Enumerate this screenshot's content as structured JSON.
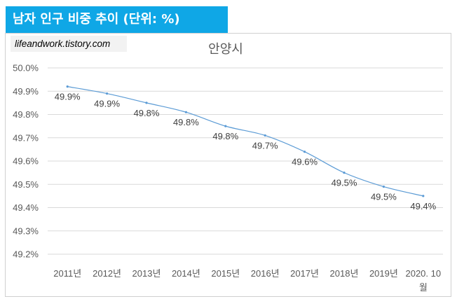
{
  "header": {
    "title": "남자 인구 비중 추이 (단위: %)"
  },
  "watermark": "lifeandwork.tistory.com",
  "colors": {
    "banner": "#0fa7e6",
    "series": "#5b9bd5",
    "grid": "#d9d9d9"
  },
  "chart_data": {
    "type": "line",
    "title": "안양시",
    "categories": [
      "2011년",
      "2012년",
      "2013년",
      "2014년",
      "2015년",
      "2016년",
      "2017년",
      "2018년",
      "2019년",
      "2020. 10 월"
    ],
    "series": [
      {
        "name": "남자 인구 비중",
        "values": [
          49.92,
          49.89,
          49.85,
          49.81,
          49.75,
          49.71,
          49.64,
          49.55,
          49.49,
          49.45
        ],
        "labels": [
          "49.9%",
          "49.9%",
          "49.8%",
          "49.8%",
          "49.8%",
          "49.7%",
          "49.6%",
          "49.5%",
          "49.5%",
          "49.4%"
        ]
      }
    ],
    "ylim": [
      49.2,
      50.0
    ],
    "yticks": [
      "49.2%",
      "49.3%",
      "49.4%",
      "49.5%",
      "49.6%",
      "49.7%",
      "49.8%",
      "49.9%",
      "50.0%"
    ],
    "xlabel": "",
    "ylabel": "",
    "grid": true,
    "legend": "none"
  }
}
